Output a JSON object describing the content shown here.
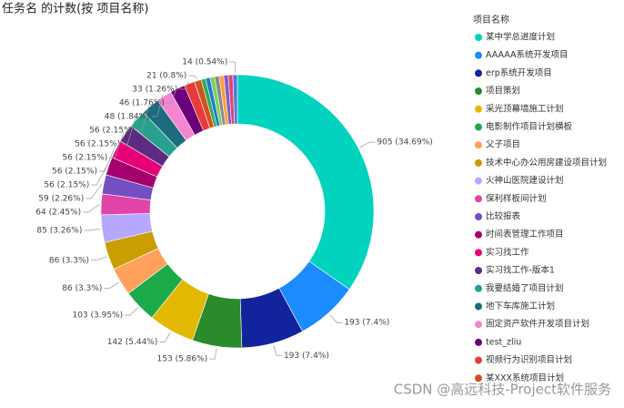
{
  "chart_data": {
    "type": "donut",
    "title": "任务名 的计数(按 项目名称)",
    "legend_title": "项目名称",
    "legend": "right",
    "watermark": "CSDN @高远科技-Project软件服务",
    "categories": [
      "某中学总进度计划",
      "AAAAA系统开发项目",
      "erp系统开发项目",
      "项目策划",
      "采光顶幕墙施工计划",
      "电影制作项目计划横板",
      "父子项目",
      "技术中心办公用房建设项目计划",
      "火神山医院建设计划",
      "保利样板间计划",
      "比较报表",
      "时间表管理工作项目",
      "实习找工作",
      "实习找工作-版本1",
      "我要结婚了项目计划",
      "地下车库施工计划",
      "固定资产软件开发项目计划",
      "test_zliu",
      "视频行为识别项目计划",
      "某XXX系统项目计划",
      null,
      null,
      null,
      null,
      null,
      null,
      null,
      null
    ],
    "values": [
      905,
      193,
      193,
      153,
      142,
      103,
      86,
      86,
      85,
      64,
      59,
      56,
      56,
      56,
      56,
      56,
      48,
      46,
      33,
      21,
      14,
      14,
      14,
      14,
      14,
      14,
      14,
      14
    ],
    "value_labels": [
      "905 (34.69%)",
      "193 (7.4%)",
      "193 (7.4%)",
      "153 (5.86%)",
      "142 (5.44%)",
      "103 (3.95%)",
      "86 (3.3%)",
      "86 (3.3%)",
      "85 (3.26%)",
      "64 (2.45%)",
      "59 (2.26%)",
      "56 (2.15%)",
      "56 (2.15%)",
      "56 (2.15%)",
      "56 (2.15%)",
      "56 (2.15%)",
      "48 (1.84%)",
      "46 (1.76%)",
      "33 (1.26%)",
      "21 (0.8%)",
      null,
      null,
      null,
      null,
      null,
      null,
      null,
      "14 (0.54%)"
    ],
    "colors": [
      "#01D3BE",
      "#1A8CFF",
      "#12239E",
      "#2B8A2B",
      "#E2B800",
      "#1DAA4A",
      "#FFA15A",
      "#C89E00",
      "#B6A8FF",
      "#E044A7",
      "#744EC2",
      "#A5006E",
      "#E8007A",
      "#5B2C80",
      "#27A18F",
      "#1D6B7D",
      "#F585D0",
      "#6B007B",
      "#E83A3A",
      "#D2511C",
      "#2EAD55",
      "#1F77D0",
      "#7BD35B",
      "#8A8A8A",
      "#FF9F40",
      "#7E5CC8",
      "#E0436B",
      "#4C7BE0"
    ]
  }
}
